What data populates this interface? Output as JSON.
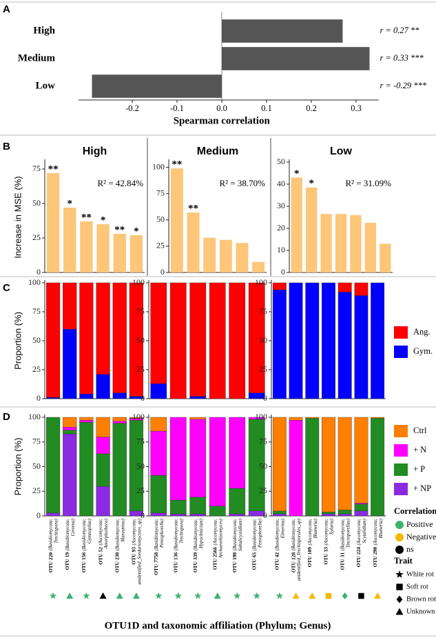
{
  "xlabel": "OTU1D and taxonomic affiliation (Phylum; Genus)",
  "correlation_legend": {
    "title": "Correlation",
    "items": [
      {
        "name": "Positive",
        "color": "#3cb371"
      },
      {
        "name": "Negative",
        "color": "#f5b800"
      },
      {
        "name": "ns",
        "color": "#000000"
      }
    ]
  },
  "trait_legend": {
    "title": "Trait",
    "items": [
      {
        "name": "White rot",
        "shape": "star"
      },
      {
        "name": "Soft rot",
        "shape": "square"
      },
      {
        "name": "Brown rot",
        "shape": "diamond"
      },
      {
        "name": "Unknown",
        "shape": "triangle"
      }
    ]
  },
  "chart_data": [
    {
      "type": "barh",
      "panel": "A",
      "categories": [
        "High",
        "Medium",
        "Low"
      ],
      "values": [
        0.27,
        0.33,
        -0.29
      ],
      "value_labels": [
        "r = 0.27 **",
        "r = 0.33 ***",
        "r = -0.29 ***"
      ],
      "color": "#555555",
      "xlim": [
        -0.32,
        0.35
      ],
      "xticks": [
        -0.2,
        -0.1,
        {
          "value": 0,
          "label": "0.0"
        },
        0.1,
        0.2,
        0.3
      ],
      "xlabel": "Spearman correlation"
    },
    {
      "type": "bar",
      "panel": "B",
      "title": "High",
      "ylabel": "Increase in MSE (%)",
      "annotation": "R² = 42.84%",
      "values": [
        72,
        47,
        37,
        35,
        28,
        27
      ],
      "significance": [
        "**",
        "*",
        "**",
        "*",
        "**",
        "*"
      ],
      "color": "#fdc679",
      "ylim": [
        0,
        80
      ],
      "yticks": [
        0,
        25,
        50,
        75
      ]
    },
    {
      "type": "bar",
      "title": "Medium",
      "annotation": "R² = 38.70%",
      "values": [
        99,
        57,
        33,
        31,
        28,
        10
      ],
      "significance": [
        "**",
        "**",
        null,
        null,
        null,
        null
      ],
      "color": "#fdc679",
      "ylim": [
        0,
        105
      ],
      "yticks": [
        0,
        25,
        50,
        75,
        100
      ]
    },
    {
      "type": "bar",
      "title": "Low",
      "annotation": "R² = 31.09%",
      "values": [
        43,
        38.5,
        26.5,
        26.5,
        26,
        22.5,
        13
      ],
      "significance": [
        "*",
        "*",
        null,
        null,
        null,
        null,
        null
      ],
      "color": "#fdc679",
      "ylim": [
        0,
        50
      ],
      "yticks": [
        0,
        10,
        20,
        30,
        40,
        50
      ]
    },
    {
      "type": "stacked",
      "panel": "C",
      "ylabel": "Proportion (%)",
      "ylim": [
        0,
        100
      ],
      "yticks": [
        0,
        25,
        50,
        75,
        100
      ],
      "series": [
        {
          "name": "Ang.",
          "color": "#ff0000",
          "values": [
            99,
            40,
            96,
            79,
            95,
            98
          ]
        },
        {
          "name": "Gym.",
          "color": "#0000ff",
          "values": [
            1,
            60,
            4,
            21,
            5,
            2
          ]
        }
      ]
    },
    {
      "type": "stacked",
      "ylim": [
        0,
        100
      ],
      "yticks": [
        0,
        25,
        50,
        75,
        100
      ],
      "series": [
        {
          "name": "Ang.",
          "color": "#ff0000",
          "values": [
            87,
            100,
            98,
            100,
            100,
            95
          ]
        },
        {
          "name": "Gym.",
          "color": "#0000ff",
          "values": [
            13,
            0,
            2,
            0,
            0,
            5
          ]
        }
      ]
    },
    {
      "type": "stacked",
      "ylim": [
        0,
        100
      ],
      "yticks": [
        0,
        25,
        50,
        75,
        100
      ],
      "legend": true,
      "series": [
        {
          "name": "Ang.",
          "color": "#ff0000",
          "values": [
            6,
            0,
            0,
            0,
            8,
            11,
            0
          ]
        },
        {
          "name": "Gym.",
          "color": "#0000ff",
          "values": [
            94,
            100,
            100,
            100,
            92,
            89,
            100
          ]
        }
      ]
    },
    {
      "type": "stacked",
      "panel": "D",
      "ylabel": "Proportion (%)",
      "ylim": [
        0,
        100
      ],
      "yticks": [
        0,
        25,
        50,
        75,
        100
      ],
      "categories": [
        "OTU 220",
        "OTU 19",
        "OTU 156",
        "OTU 52",
        "OTU 230",
        "OTU 93"
      ],
      "taxa": [
        [
          "(Basidiomycota;",
          "Trechispora)"
        ],
        [
          "(Basidiomycota;",
          "Cerrena)"
        ],
        [
          "(Basidiomycota;",
          "Gymnopilus)"
        ],
        [
          "(Ascomycota;",
          "Amorphotheca)"
        ],
        [
          "(Basidiomycota;",
          "Marasmius)"
        ],
        [
          "(Ascomycota;",
          "unidentified_Sordariomycetes_sp)"
        ]
      ],
      "correlation": [
        "Positive",
        "Positive",
        "Positive",
        "ns",
        "Positive",
        "Positive"
      ],
      "trait": [
        "White rot",
        "Unknown",
        "White rot",
        "Unknown",
        "Unknown",
        "Unknown"
      ],
      "series": [
        {
          "name": "Ctrl",
          "color": "#ff7f00",
          "values": [
            0,
            10,
            3,
            20,
            4,
            1
          ]
        },
        {
          "name": "+ N",
          "color": "#ff00ff",
          "values": [
            0,
            3,
            2,
            17,
            2,
            2
          ]
        },
        {
          "name": "+ P",
          "color": "#228b22",
          "values": [
            97,
            4,
            95,
            33,
            94,
            92
          ]
        },
        {
          "name": "+ NP",
          "color": "#8a2be2",
          "values": [
            3,
            83,
            0,
            30,
            0,
            5
          ]
        }
      ]
    },
    {
      "type": "stacked",
      "ylim": [
        0,
        100
      ],
      "yticks": [
        0,
        25,
        50,
        75,
        100
      ],
      "categories": [
        "OTU 7758",
        "OTU 136",
        "OTU 339",
        "OTU 2566",
        "OTU 198",
        "OTU 65"
      ],
      "taxa": [
        [
          "(Basidiomycota;",
          "Peniophorella)"
        ],
        [
          "(Basidiomycota;",
          "Trechispora)"
        ],
        [
          "(Basidiomycota;",
          "Hypochnicium)"
        ],
        [
          "(Ascomycota;",
          "Archaeorhizomyces)"
        ],
        [
          "(Basidiomycota;",
          "Subulicystidium)"
        ],
        [
          "(Basidiomycota;",
          "Peniophorella)"
        ]
      ],
      "correlation": [
        "Positive",
        "Positive",
        "Positive",
        "Positive",
        "Positive",
        "Positive"
      ],
      "trait": [
        "White rot",
        "White rot",
        "White rot",
        "Unknown",
        "White rot",
        "White rot"
      ],
      "series": [
        {
          "name": "Ctrl",
          "color": "#ff7f00",
          "values": [
            14,
            0,
            2,
            0,
            0,
            0
          ]
        },
        {
          "name": "+ N",
          "color": "#ff00ff",
          "values": [
            45,
            84,
            79,
            90,
            72,
            2
          ]
        },
        {
          "name": "+ P",
          "color": "#228b22",
          "values": [
            38,
            14,
            17,
            10,
            26,
            93
          ]
        },
        {
          "name": "+ NP",
          "color": "#8a2be2",
          "values": [
            3,
            2,
            2,
            0,
            2,
            5
          ]
        }
      ]
    },
    {
      "type": "stacked",
      "ylim": [
        0,
        100
      ],
      "yticks": [
        0,
        25,
        50,
        75,
        100
      ],
      "legend": true,
      "categories": [
        "OTU 42",
        "OTU 128",
        "OTU 109",
        "OTU 33",
        "OTU 31",
        "OTU 224",
        "OTU 290"
      ],
      "taxa": [
        [
          "(Basidiomycota;",
          "Elmerina)"
        ],
        [
          "(Basidiomycota;",
          "unidentified_Trechisporales_sp)"
        ],
        [
          "(Ascomycota;",
          "Blumeria)"
        ],
        [
          "(Ascomycota;",
          "Xylaria)"
        ],
        [
          "(Basidiomycota;",
          "Tinctoporellus)"
        ],
        [
          "(Ascomycota;",
          "Scytalidium)"
        ],
        [
          "(Ascomycota;",
          "Blumeria)"
        ]
      ],
      "correlation": [
        "Positive",
        "Negative",
        "Negative",
        "Negative",
        "Positive",
        "ns",
        "Negative"
      ],
      "trait": [
        "White rot",
        "Unknown",
        "Unknown",
        "Soft rot",
        "Brown rot",
        "Soft rot",
        "Unknown"
      ],
      "series": [
        {
          "name": "Ctrl",
          "color": "#ff7f00",
          "values": [
            95,
            3,
            1,
            96,
            94,
            87,
            1
          ]
        },
        {
          "name": "+ N",
          "color": "#ff00ff",
          "values": [
            0,
            97,
            0,
            0,
            0,
            1,
            0
          ]
        },
        {
          "name": "+ P",
          "color": "#228b22",
          "values": [
            3,
            0,
            99,
            2,
            4,
            7,
            99
          ]
        },
        {
          "name": "+ NP",
          "color": "#8a2be2",
          "values": [
            2,
            0,
            0,
            2,
            2,
            5,
            0
          ]
        }
      ]
    }
  ]
}
